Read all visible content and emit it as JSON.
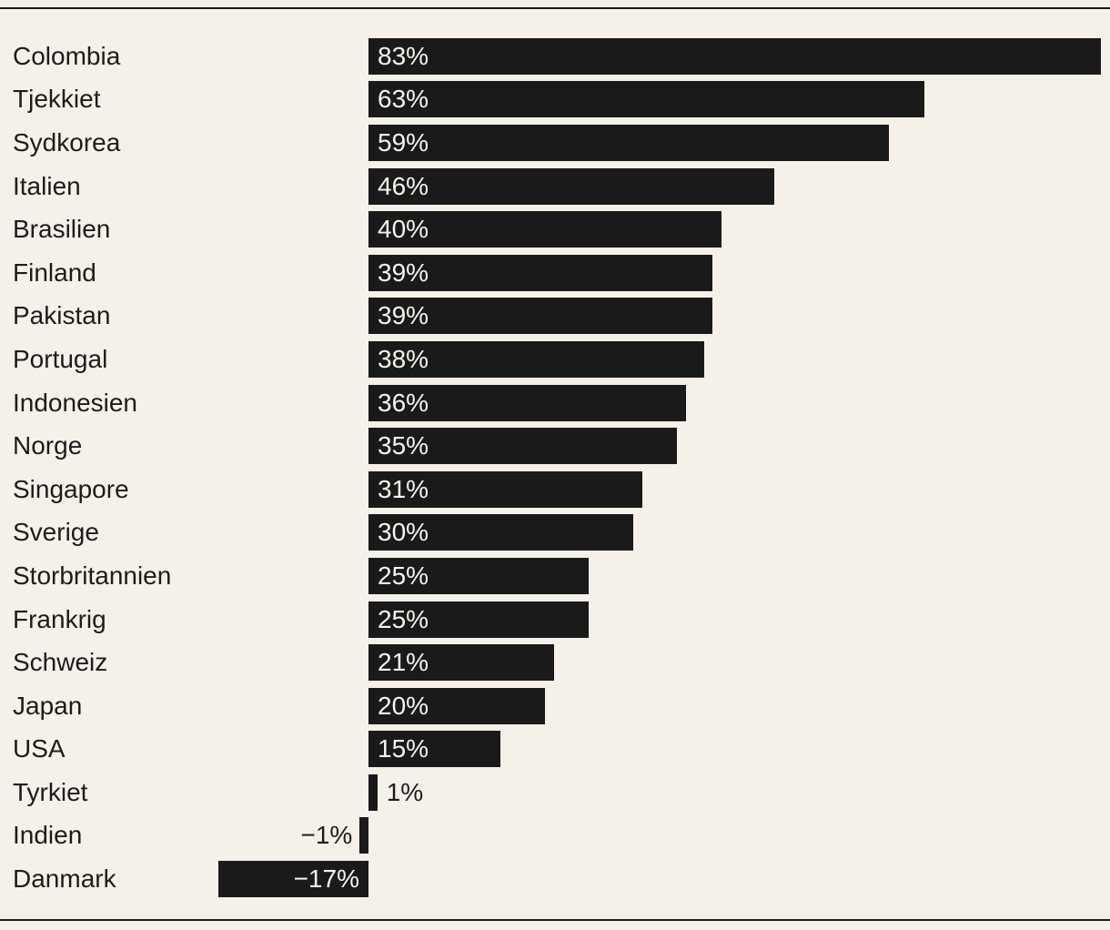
{
  "page": {
    "background": "#f5f1e9",
    "bar_color": "#1a1a1a",
    "text_color": "#1c1c1c",
    "inside_label_color": "#f7f4ee",
    "rule_color": "#1a1a1a"
  },
  "chart_data": {
    "type": "bar",
    "orientation": "horizontal",
    "title": "",
    "xlabel": "",
    "ylabel": "",
    "xlim": [
      -17,
      83
    ],
    "grid": "off",
    "legend": "none",
    "axis_lines": "top-and-bottom-rules-only",
    "categories": [
      "Colombia",
      "Tjekkiet",
      "Sydkorea",
      "Italien",
      "Brasilien",
      "Finland",
      "Pakistan",
      "Portugal",
      "Indonesien",
      "Norge",
      "Singapore",
      "Sverige",
      "Storbritannien",
      "Frankrig",
      "Schweiz",
      "Japan",
      "USA",
      "Tyrkiet",
      "Indien",
      "Danmark"
    ],
    "values": [
      83,
      63,
      59,
      46,
      40,
      39,
      39,
      38,
      36,
      35,
      31,
      30,
      25,
      25,
      21,
      20,
      15,
      1,
      -1,
      -17
    ],
    "value_labels": [
      "83%",
      "63%",
      "59%",
      "46%",
      "40%",
      "39%",
      "39%",
      "38%",
      "36%",
      "35%",
      "31%",
      "30%",
      "25%",
      "25%",
      "21%",
      "20%",
      "15%",
      "1%",
      "−1%",
      "−17%"
    ]
  }
}
